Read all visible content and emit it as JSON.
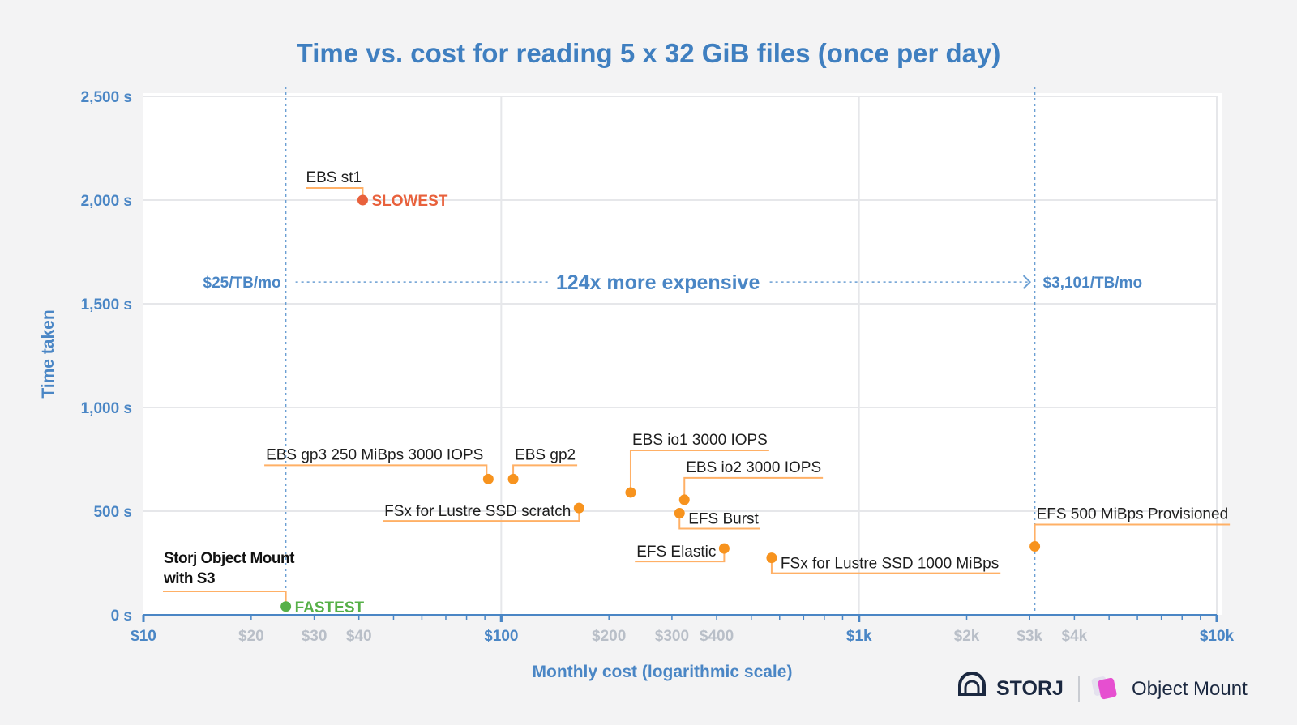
{
  "chart_data": {
    "type": "scatter",
    "title": "Time vs. cost for reading 5 x 32 GiB files (once per day)",
    "xlabel": "Monthly cost (logarithmic scale)",
    "ylabel": "Time taken",
    "x_scale": "log",
    "xlim": [
      10,
      10000
    ],
    "ylim": [
      0,
      2500
    ],
    "grid": true,
    "x_ticks": [
      {
        "value": 10,
        "label": "$10",
        "major": true
      },
      {
        "value": 20,
        "label": "$20",
        "major": false
      },
      {
        "value": 30,
        "label": "$30",
        "major": false
      },
      {
        "value": 40,
        "label": "$40",
        "major": false
      },
      {
        "value": 100,
        "label": "$100",
        "major": true
      },
      {
        "value": 200,
        "label": "$200",
        "major": false
      },
      {
        "value": 300,
        "label": "$300",
        "major": false
      },
      {
        "value": 400,
        "label": "$400",
        "major": false
      },
      {
        "value": 1000,
        "label": "$1k",
        "major": true
      },
      {
        "value": 2000,
        "label": "$2k",
        "major": false
      },
      {
        "value": 3000,
        "label": "$3k",
        "major": false
      },
      {
        "value": 4000,
        "label": "$4k",
        "major": false
      },
      {
        "value": 10000,
        "label": "$10k",
        "major": true
      }
    ],
    "y_ticks": [
      {
        "value": 0,
        "label": "0 s"
      },
      {
        "value": 500,
        "label": "500 s"
      },
      {
        "value": 1000,
        "label": "1,000 s"
      },
      {
        "value": 1500,
        "label": "1,500 s"
      },
      {
        "value": 2000,
        "label": "2,000 s"
      },
      {
        "value": 2500,
        "label": "2,500 s"
      }
    ],
    "points": [
      {
        "label": "Storj Object Mount",
        "label2": "with S3",
        "x": 25,
        "y": 40,
        "color": "#57b048",
        "tag": "FASTEST",
        "style": "storj"
      },
      {
        "label": "EBS st1",
        "x": 41,
        "y": 2000,
        "color": "#e8613c",
        "tag": "SLOWEST",
        "style": "above"
      },
      {
        "label": "EBS gp3 250 MiBps 3000 IOPS",
        "x": 92,
        "y": 655,
        "color": "#f7931e",
        "style": "above-left"
      },
      {
        "label": "EBS gp2",
        "x": 108,
        "y": 655,
        "color": "#f7931e",
        "style": "above-right"
      },
      {
        "label": "FSx for Lustre SSD scratch",
        "x": 165,
        "y": 515,
        "color": "#f7931e",
        "style": "below-left"
      },
      {
        "label": "EBS io1 3000 IOPS",
        "x": 230,
        "y": 590,
        "color": "#f7931e",
        "style": "above-right"
      },
      {
        "label": "EBS io2 3000 IOPS",
        "x": 325,
        "y": 555,
        "color": "#f7931e",
        "style": "above-right"
      },
      {
        "label": "EFS Burst",
        "x": 315,
        "y": 490,
        "color": "#f7931e",
        "style": "below-right"
      },
      {
        "label": "EFS Elastic",
        "x": 420,
        "y": 320,
        "color": "#f7931e",
        "style": "below-left"
      },
      {
        "label": "FSx for Lustre SSD 1000 MiBps",
        "x": 570,
        "y": 275,
        "color": "#f7931e",
        "style": "below-right"
      },
      {
        "label": "EFS 500 MiBps Provisioned",
        "x": 3101,
        "y": 330,
        "color": "#f7931e",
        "style": "above-right"
      }
    ],
    "reference_lines": [
      {
        "x": 25,
        "label": "$25/TB/mo"
      },
      {
        "x": 3101,
        "label": "$3,101/TB/mo"
      }
    ],
    "annotation": {
      "text": "124x more expensive",
      "y": 1605
    }
  },
  "branding": {
    "storj": "STORJ",
    "product": "Object Mount"
  },
  "colors": {
    "accent": "#4a86c5",
    "title": "#3f7fc0",
    "fastest": "#57b048",
    "slowest": "#e8613c",
    "point": "#f7931e",
    "leader": "#ffb066"
  }
}
